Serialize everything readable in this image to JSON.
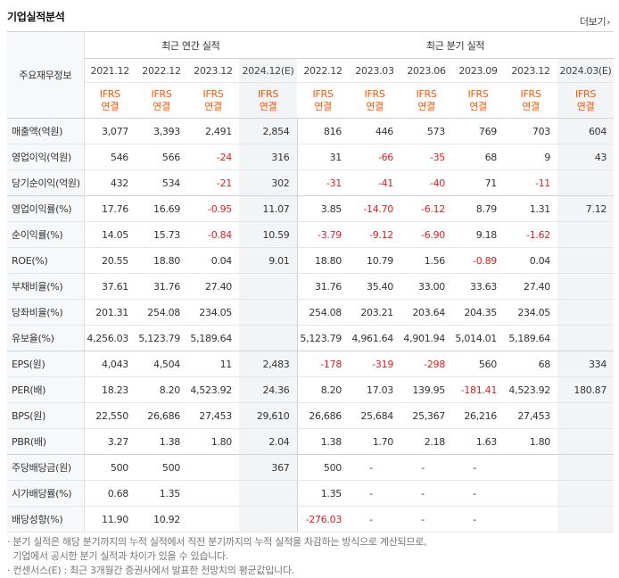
{
  "header": {
    "title": "기업실적분석",
    "more_label": "더보기",
    "more_arrow": "›"
  },
  "table": {
    "corner_label": "주요재무정보",
    "groups": [
      {
        "label": "최근 연간 실적",
        "span": 4
      },
      {
        "label": "최근 분기 실적",
        "span": 6
      }
    ],
    "periods": [
      "2021.12",
      "2022.12",
      "2023.12",
      "2024.12(E)",
      "2022.12",
      "2023.03",
      "2023.06",
      "2023.09",
      "2023.12",
      "2024.03(E)"
    ],
    "standard_line1": "IFRS",
    "standard_line2": "연결",
    "rows": [
      {
        "label": "매출액(억원)",
        "values": [
          "3,077",
          "3,393",
          "2,491",
          "2,854",
          "816",
          "446",
          "573",
          "769",
          "703",
          "604"
        ]
      },
      {
        "label": "영업이익(억원)",
        "values": [
          "546",
          "566",
          "-24",
          "316",
          "31",
          "-66",
          "-35",
          "68",
          "9",
          "43"
        ]
      },
      {
        "label": "당기순이익(억원)",
        "values": [
          "432",
          "534",
          "-21",
          "302",
          "-31",
          "-41",
          "-40",
          "71",
          "-11",
          ""
        ]
      },
      {
        "label": "영업이익률(%)",
        "values": [
          "17.76",
          "16.69",
          "-0.95",
          "11.07",
          "3.85",
          "-14.70",
          "-6.12",
          "8.79",
          "1.31",
          "7.12"
        ]
      },
      {
        "label": "순이익률(%)",
        "values": [
          "14.05",
          "15.73",
          "-0.84",
          "10.59",
          "-3.79",
          "-9.12",
          "-6.90",
          "9.18",
          "-1.62",
          ""
        ]
      },
      {
        "label": "ROE(%)",
        "values": [
          "20.55",
          "18.80",
          "0.04",
          "9.01",
          "18.80",
          "10.79",
          "1.56",
          "-0.89",
          "0.04",
          ""
        ]
      },
      {
        "label": "부채비율(%)",
        "values": [
          "37.61",
          "31.76",
          "27.40",
          "",
          "31.76",
          "35.40",
          "33.00",
          "33.63",
          "27.40",
          ""
        ]
      },
      {
        "label": "당좌비율(%)",
        "values": [
          "201.31",
          "254.08",
          "234.05",
          "",
          "254.08",
          "203.21",
          "203.64",
          "204.35",
          "234.05",
          ""
        ]
      },
      {
        "label": "유보율(%)",
        "values": [
          "4,256.03",
          "5,123.79",
          "5,189.64",
          "",
          "5,123.79",
          "4,961.64",
          "4,901.94",
          "5,014.01",
          "5,189.64",
          ""
        ]
      },
      {
        "label": "EPS(원)",
        "values": [
          "4,043",
          "4,504",
          "11",
          "2,483",
          "-178",
          "-319",
          "-298",
          "560",
          "68",
          "334"
        ]
      },
      {
        "label": "PER(배)",
        "values": [
          "18.23",
          "8.20",
          "4,523.92",
          "24.36",
          "8.20",
          "17.03",
          "139.95",
          "-181.41",
          "4,523.92",
          "180.87"
        ]
      },
      {
        "label": "BPS(원)",
        "values": [
          "22,550",
          "26,686",
          "27,453",
          "29,610",
          "26,686",
          "25,684",
          "25,367",
          "26,216",
          "27,453",
          ""
        ]
      },
      {
        "label": "PBR(배)",
        "values": [
          "3.27",
          "1.38",
          "1.80",
          "2.04",
          "1.38",
          "1.70",
          "2.18",
          "1.63",
          "1.80",
          ""
        ]
      },
      {
        "label": "주당배당금(원)",
        "values": [
          "500",
          "500",
          "",
          "367",
          "500",
          "-",
          "-",
          "-",
          "",
          ""
        ]
      },
      {
        "label": "시가배당률(%)",
        "values": [
          "0.68",
          "1.35",
          "",
          "",
          "1.35",
          "-",
          "-",
          "-",
          "",
          ""
        ]
      },
      {
        "label": "배당성향(%)",
        "values": [
          "11.90",
          "10.92",
          "",
          "",
          "-276.03",
          "-",
          "-",
          "-",
          "",
          ""
        ]
      }
    ],
    "group_end_rows": [
      2,
      8,
      12
    ]
  },
  "notes": [
    "· 분기 실적은 해당 분기까지의 누적 실적에서 직전 분기까지의 누적 실적을 차감하는 방식으로 계산되므로,",
    "  기업에서 공시한 분기 실적과 차이가 있을 수 있습니다.",
    "· 컨센서스(E) : 최근 3개월간 증권사에서 발표한 전망치의 평균값입니다."
  ],
  "colors": {
    "estimate_bg": "#f2f4f6",
    "negative": "#e02121",
    "ifrs": "#ff5400",
    "label_bg": "#f7f8f9"
  }
}
